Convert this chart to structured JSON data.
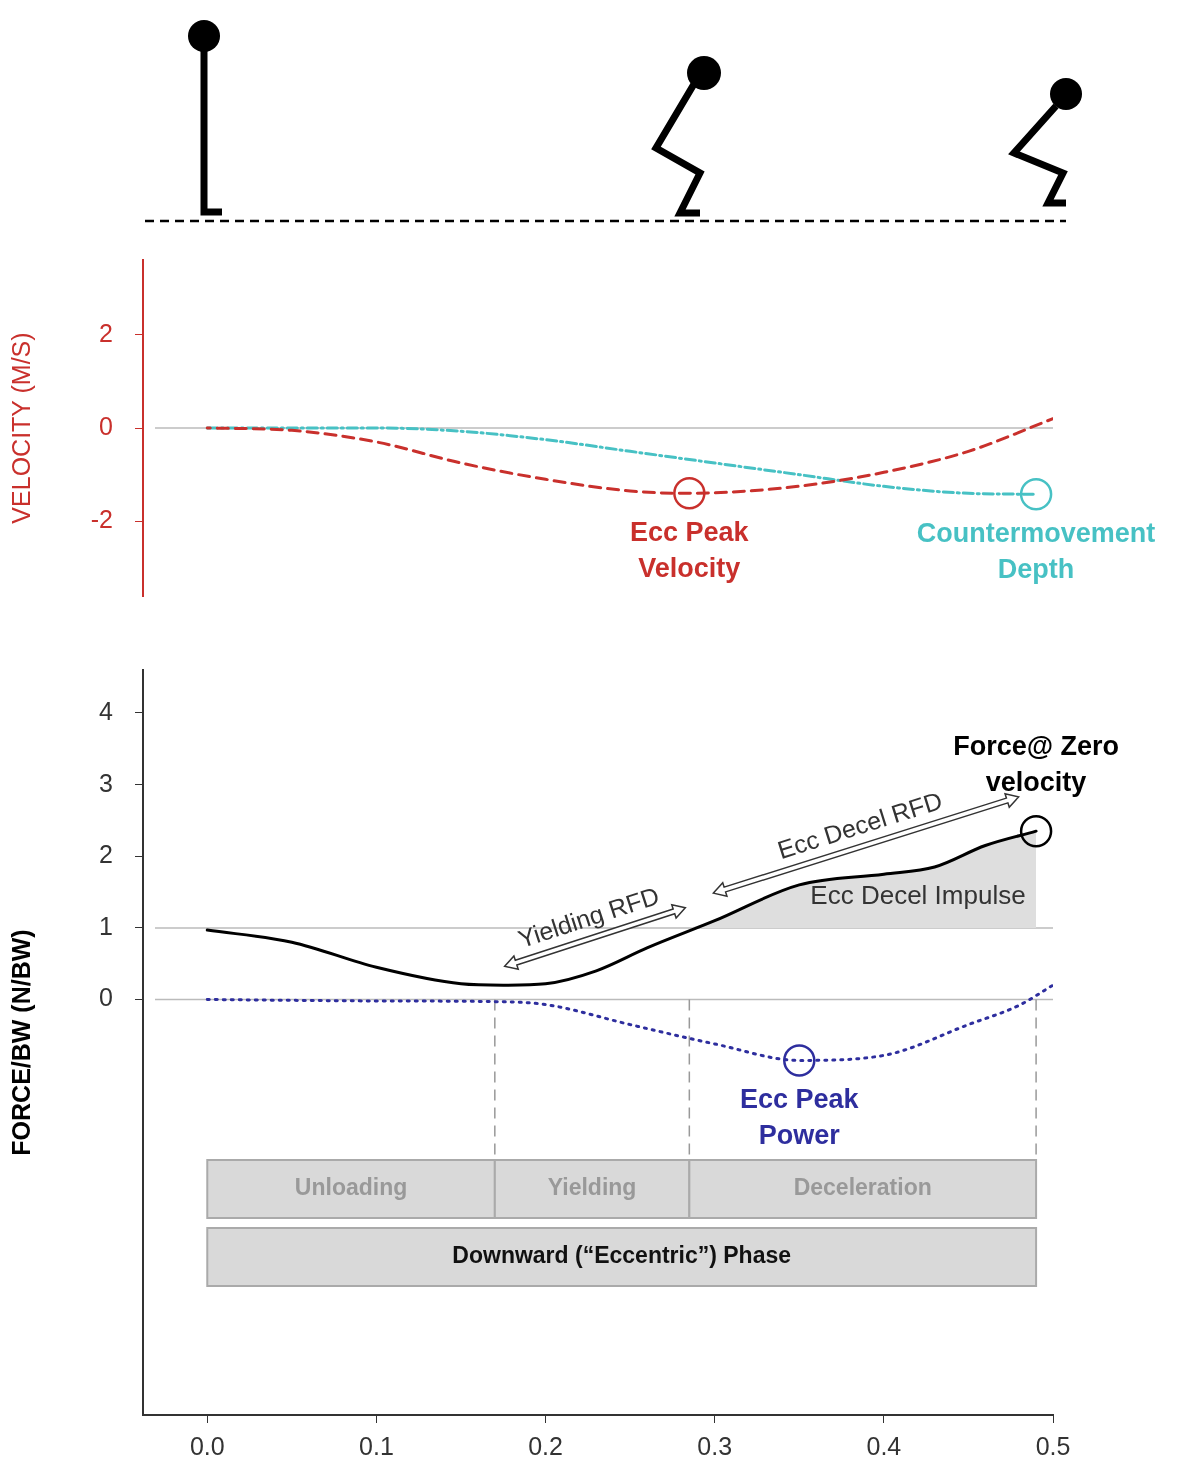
{
  "chart_data": [
    {
      "type": "line",
      "ylabel": "VELOCITY (M/S)",
      "xlim": [
        -0.038,
        0.5
      ],
      "ylim": [
        -3.6,
        3.6
      ],
      "yticks": [
        -2,
        0,
        2
      ],
      "tick_labels": "y",
      "grid": false,
      "legend": false,
      "marker": "none",
      "series": [
        {
          "color": "#c9302c",
          "line_style": "dashed",
          "x": [
            0,
            0.05,
            0.1,
            0.15,
            0.2,
            0.25,
            0.285,
            0.32,
            0.36,
            0.4,
            0.45,
            0.5
          ],
          "values": [
            0,
            -0.05,
            -0.3,
            -0.75,
            -1.1,
            -1.35,
            -1.4,
            -1.35,
            -1.2,
            -0.95,
            -0.5,
            0.2
          ]
        },
        {
          "color": "#47c1c4",
          "line_style": "dashdot",
          "x": [
            0,
            0.1,
            0.15,
            0.2,
            0.25,
            0.3,
            0.35,
            0.4,
            0.45,
            0.49
          ],
          "values": [
            0,
            0,
            -0.07,
            -0.25,
            -0.5,
            -0.75,
            -1.0,
            -1.25,
            -1.4,
            -1.42
          ]
        }
      ],
      "ref_lines": [
        {
          "axis": "y",
          "value": 0,
          "color": "#bbbbbb"
        }
      ],
      "annotations": [
        {
          "text": "Ecc Peak Velocity",
          "x": 0.285,
          "y": -1.4
        },
        {
          "text": "Countermovement Depth",
          "x": 0.49,
          "y": -1.42
        }
      ]
    },
    {
      "type": "line",
      "ylabel": "FORCE/BW (N/BW)",
      "xlim": [
        -0.038,
        0.5
      ],
      "ylim": [
        -5.8,
        4.6
      ],
      "yticks": [
        0,
        1,
        2,
        3,
        4
      ],
      "xticks": [
        {
          "value": 0,
          "label": "0.0"
        },
        0.1,
        0.2,
        0.3,
        0.4,
        0.5
      ],
      "grid": false,
      "legend": false,
      "marker": "none",
      "series": [
        {
          "type": "area",
          "color": "#dedede",
          "x": [
            0.285,
            0.3,
            0.35,
            0.4,
            0.43,
            0.46,
            0.49
          ],
          "values": [
            1.0,
            1.1,
            1.6,
            1.75,
            1.85,
            2.15,
            2.35
          ]
        },
        {
          "color": "#000000",
          "line_style": "solid",
          "x": [
            0,
            0.05,
            0.1,
            0.15,
            0.175,
            0.2,
            0.23,
            0.26,
            0.3,
            0.35,
            0.4,
            0.43,
            0.46,
            0.49
          ],
          "values": [
            0.97,
            0.8,
            0.45,
            0.22,
            0.2,
            0.22,
            0.4,
            0.72,
            1.1,
            1.6,
            1.75,
            1.85,
            2.15,
            2.35
          ]
        },
        {
          "color": "#2e2e9e",
          "line_style": "dotted",
          "x": [
            0,
            0.1,
            0.17,
            0.2,
            0.25,
            0.3,
            0.35,
            0.4,
            0.45,
            0.48,
            0.5
          ],
          "values": [
            0,
            -0.02,
            -0.03,
            -0.07,
            -0.35,
            -0.62,
            -0.85,
            -0.78,
            -0.35,
            -0.08,
            0.2
          ]
        }
      ],
      "ref_lines": [
        {
          "axis": "y",
          "value": 0,
          "color": "#bbbbbb"
        },
        {
          "axis": "y",
          "value": 1,
          "color": "#bbbbbb"
        },
        {
          "axis": "x",
          "value": 0.17,
          "color": "#999999",
          "line_style": "dashed"
        },
        {
          "axis": "x",
          "value": 0.285,
          "color": "#999999",
          "line_style": "dashed"
        },
        {
          "axis": "x",
          "value": 0.49,
          "color": "#999999",
          "line_style": "dashed"
        }
      ],
      "bands": [
        {
          "axis": "x",
          "from": 0,
          "to": 0.17,
          "label": "Unloading",
          "color": "#d9d9d9"
        },
        {
          "axis": "x",
          "from": 0.17,
          "to": 0.285,
          "label": "Yielding",
          "color": "#d9d9d9"
        },
        {
          "axis": "x",
          "from": 0.285,
          "to": 0.49,
          "label": "Deceleration",
          "color": "#d9d9d9"
        },
        {
          "axis": "x",
          "from": 0,
          "to": 0.49,
          "label": "Downward (“Eccentric”) Phase",
          "color": "#d9d9d9"
        }
      ],
      "annotations": [
        {
          "text": "Force@ Zero velocity",
          "x": 0.49,
          "y": 2.35
        },
        {
          "text": "Ecc Peak Power",
          "x": 0.35,
          "y": -0.85
        },
        "Yielding RFD",
        "Ecc Decel RFD",
        "Ecc Decel Impulse"
      ]
    }
  ]
}
